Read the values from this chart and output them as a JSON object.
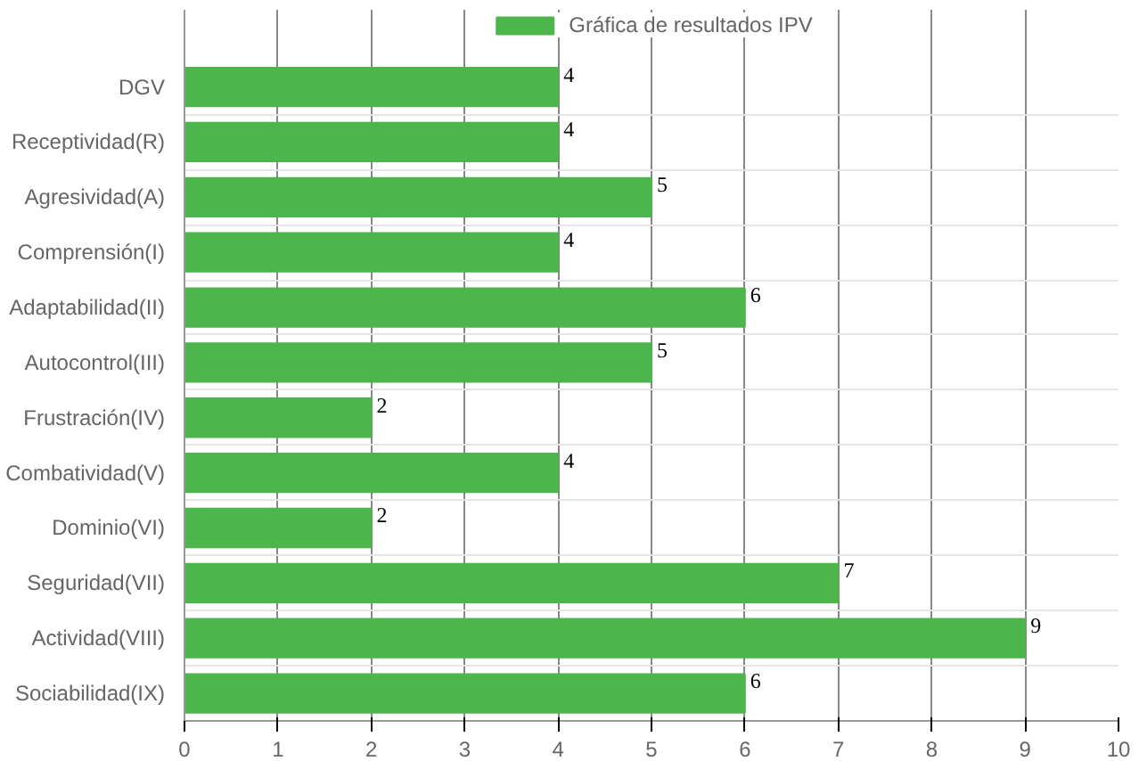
{
  "chart_data": {
    "type": "bar",
    "orientation": "horizontal",
    "categories": [
      "DGV",
      "Receptividad(R)",
      "Agresividad(A)",
      "Comprensión(I)",
      "Adaptabilidad(II)",
      "Autocontrol(III)",
      "Frustración(IV)",
      "Combatividad(V)",
      "Dominio(VI)",
      "Seguridad(VII)",
      "Actividad(VIII)",
      "Sociabilidad(IX)"
    ],
    "series": [
      {
        "name": "Gráfica de resultados IPV",
        "color": "#4cb54c",
        "values": [
          4,
          4,
          5,
          4,
          6,
          5,
          2,
          4,
          2,
          7,
          9,
          6
        ]
      }
    ],
    "xlim": [
      0,
      10
    ],
    "xticks": [
      0,
      1,
      2,
      3,
      4,
      5,
      6,
      7,
      8,
      9,
      10
    ],
    "grid": true,
    "legend": "top",
    "data_labels": true
  }
}
